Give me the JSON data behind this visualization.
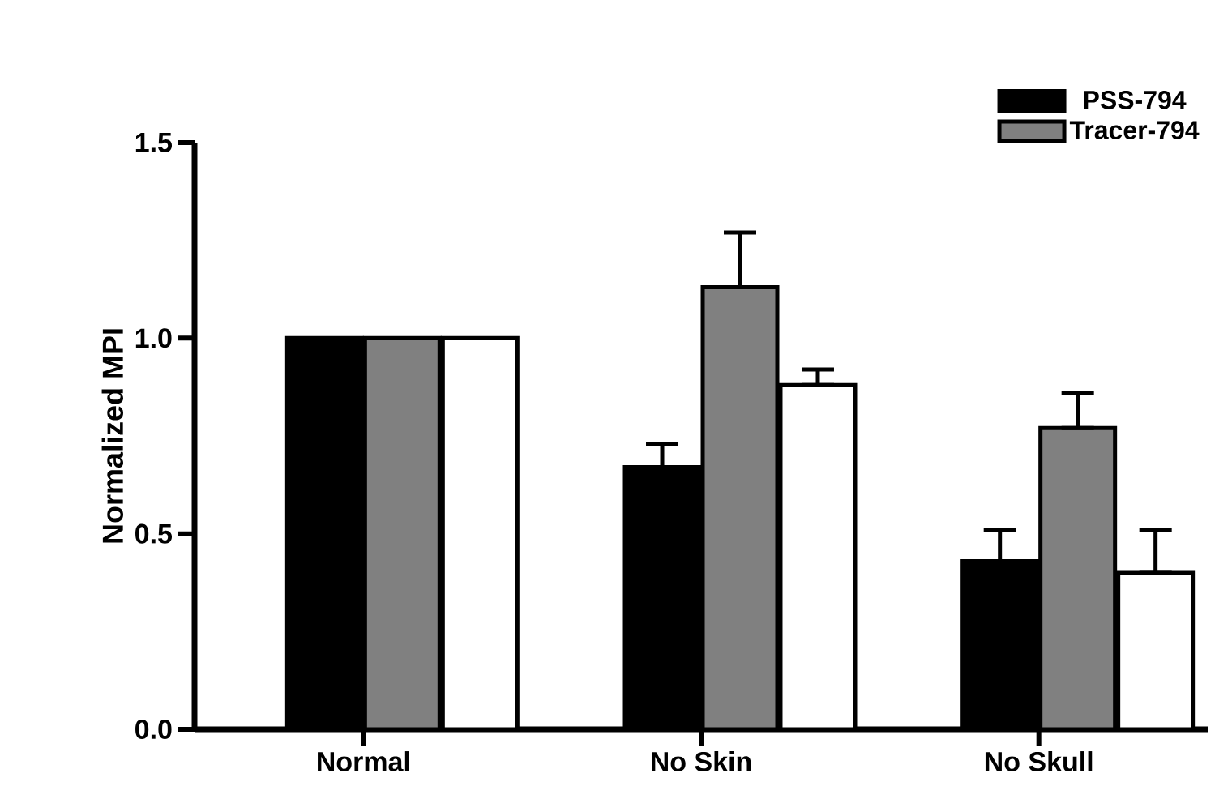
{
  "chart_data": {
    "type": "bar",
    "ylabel": "Normalized MPI",
    "categories": [
      "Normal",
      "No Skin",
      "No Skull"
    ],
    "series": [
      {
        "name": "PSS-794",
        "color": "#000000",
        "values": [
          1.0,
          0.67,
          0.43
        ],
        "errors": [
          null,
          [
            0.67,
            0.73
          ],
          [
            0.43,
            0.51
          ]
        ]
      },
      {
        "name": "Tracer-794",
        "color": "#808080",
        "values": [
          1.0,
          1.13,
          0.77
        ],
        "errors": [
          null,
          [
            1.13,
            1.27
          ],
          [
            0.77,
            0.86
          ]
        ]
      },
      {
        "color": "#ffffff",
        "values": [
          1.0,
          0.88,
          0.4
        ],
        "errors": [
          null,
          [
            0.88,
            0.92
          ],
          [
            0.4,
            0.51
          ]
        ]
      }
    ],
    "ylim": [
      0,
      1.5
    ],
    "yticks": [
      {
        "value": 0,
        "label": "0.0"
      },
      {
        "value": 0.5,
        "label": "0.5"
      },
      {
        "value": 1,
        "label": "1.0"
      },
      {
        "value": 1.5,
        "label": "1.5"
      }
    ],
    "legend": "top right"
  }
}
